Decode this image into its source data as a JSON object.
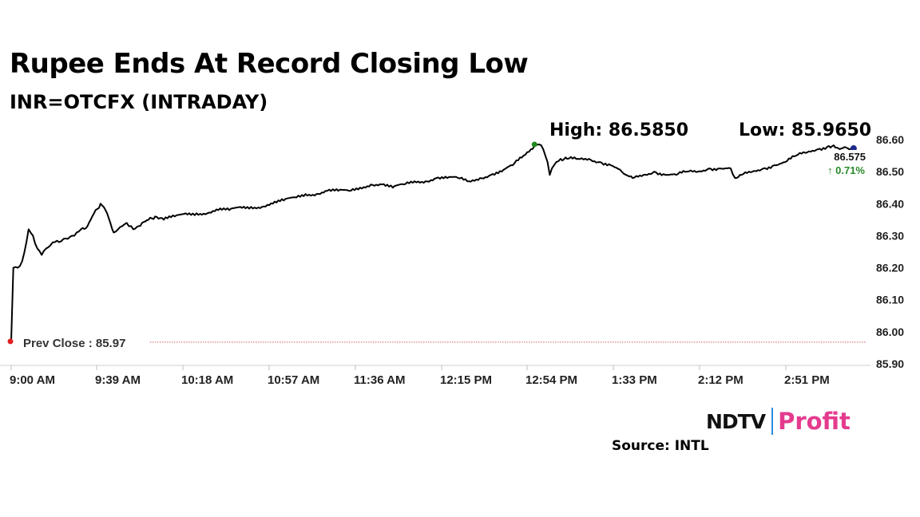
{
  "chart_data": {
    "type": "line",
    "title": "Rupee Ends At Record Closing Low",
    "subtitle": "INR=OTCFX (INTRADAY)",
    "x_tick_labels": [
      "9:00 AM",
      "9:39 AM",
      "10:18 AM",
      "10:57 AM",
      "11:36 AM",
      "12:15 PM",
      "12:54 PM",
      "1:33 PM",
      "2:12 PM",
      "2:51 PM"
    ],
    "y_tick_labels": [
      "86.60",
      "86.50",
      "86.40",
      "86.30",
      "86.20",
      "86.10",
      "86.00",
      "85.90"
    ],
    "ylim": [
      85.9,
      86.6
    ],
    "xlim_minutes_after_open": [
      0,
      393
    ],
    "grid": false,
    "line_color": "#000000",
    "series": [
      {
        "x": [
          0,
          1,
          3,
          5,
          7,
          8,
          10,
          12,
          14,
          16,
          18,
          20,
          22,
          24,
          26,
          28,
          30,
          32,
          35,
          38,
          41,
          44,
          47,
          49,
          51,
          53,
          55,
          56,
          60,
          63,
          66,
          70,
          75,
          80,
          85,
          90,
          95,
          100,
          105,
          110,
          115,
          120,
          125,
          130,
          135,
          140,
          145,
          150,
          155,
          160,
          165,
          170,
          175,
          180,
          185,
          190,
          195,
          200,
          205,
          210,
          215,
          220,
          225,
          230,
          235,
          240,
          242,
          244,
          246,
          247,
          248,
          249,
          250,
          252,
          255,
          260,
          265,
          270,
          275,
          280,
          282,
          285,
          290,
          295,
          300,
          305,
          310,
          315,
          320,
          325,
          330,
          332,
          335,
          340,
          345,
          350,
          355,
          360,
          365,
          370,
          375,
          378,
          380,
          383,
          386
        ],
        "values": [
          85.97,
          86.2,
          86.2,
          86.22,
          86.28,
          86.32,
          86.3,
          86.26,
          86.24,
          86.26,
          86.27,
          86.28,
          86.28,
          86.29,
          86.29,
          86.3,
          86.31,
          86.32,
          86.33,
          86.37,
          86.4,
          86.37,
          86.31,
          86.32,
          86.33,
          86.34,
          86.33,
          86.32,
          86.34,
          86.35,
          86.36,
          86.35,
          86.36,
          86.37,
          86.37,
          86.37,
          86.38,
          86.38,
          86.39,
          86.39,
          86.39,
          86.4,
          86.41,
          86.42,
          86.43,
          86.43,
          86.44,
          86.44,
          86.44,
          86.45,
          86.46,
          86.46,
          86.45,
          86.46,
          86.47,
          86.47,
          86.48,
          86.48,
          86.48,
          86.47,
          86.48,
          86.49,
          86.5,
          86.52,
          86.55,
          86.58,
          86.585,
          86.57,
          86.53,
          86.49,
          86.51,
          86.52,
          86.53,
          86.54,
          86.54,
          86.54,
          86.54,
          86.53,
          86.52,
          86.5,
          86.49,
          86.48,
          86.49,
          86.5,
          86.49,
          86.49,
          86.5,
          86.5,
          86.51,
          86.51,
          86.51,
          86.48,
          86.49,
          86.5,
          86.51,
          86.52,
          86.53,
          86.55,
          86.56,
          86.57,
          86.58,
          86.575,
          86.57,
          86.575,
          86.575
        ]
      }
    ],
    "prev_close": {
      "label": "Prev Close : 85.97",
      "value": 85.97,
      "color": "#e02020"
    },
    "high": {
      "label": "High: 86.5850",
      "value": 86.585,
      "x": 240,
      "color": "#1f8a1f"
    },
    "low": {
      "label": "Low: 85.9650"
    },
    "last": {
      "value_label": "86.575",
      "change_label": "↑ 0.71%",
      "change_color": "#2a8a2a",
      "marker_color": "#1a2a8c"
    }
  },
  "branding": {
    "logo_left": "NDTV",
    "logo_right": "Profit"
  },
  "source": "Source: INTL"
}
